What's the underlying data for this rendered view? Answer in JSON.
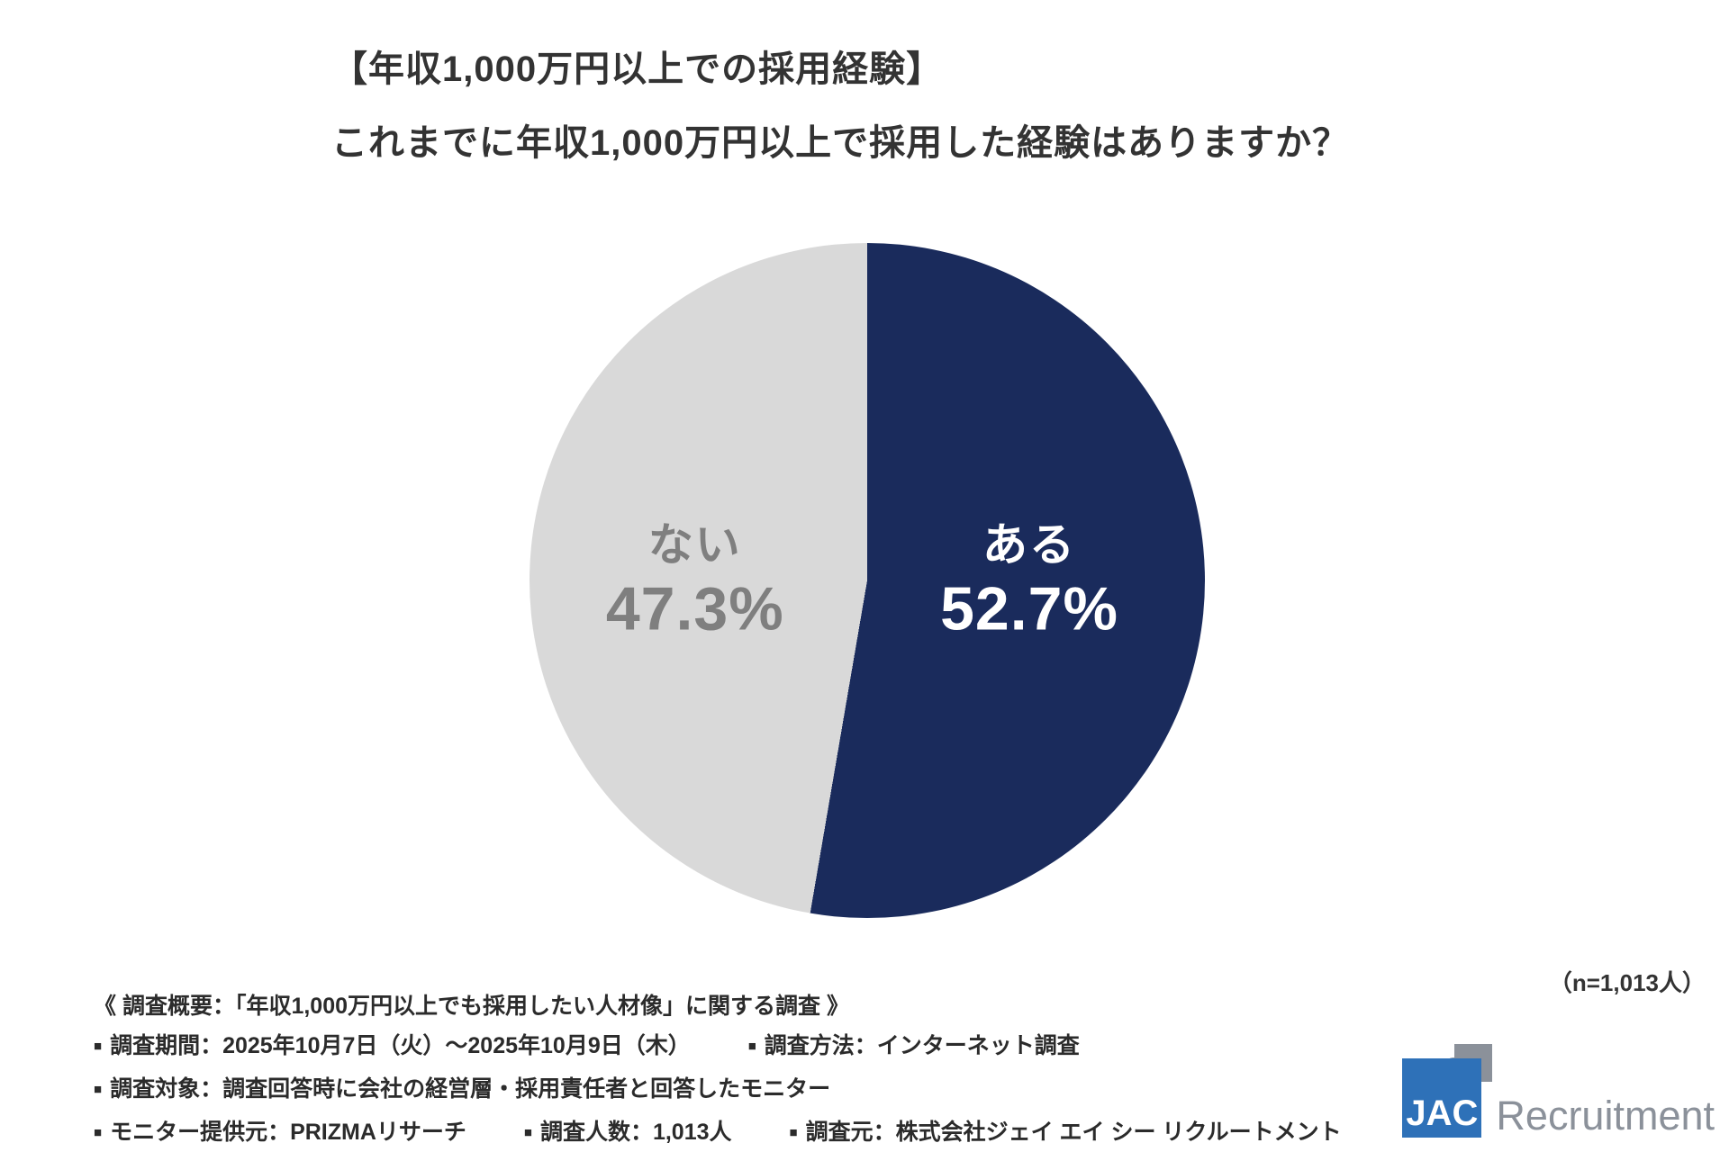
{
  "page": {
    "background": "#ffffff"
  },
  "title": {
    "line1": "【年収1,000万円以上での採用経験】",
    "line2": "これまでに年収1,000万円以上で採用した経験はありますか？"
  },
  "chart_data": {
    "type": "pie",
    "title": "【年収1,000万円以上での採用経験】これまでに年収1,000万円以上で採用した経験はありますか？",
    "categories": [
      "ある",
      "ない"
    ],
    "values": [
      52.7,
      47.3
    ],
    "unit": "%",
    "colors": [
      "#1a2b5c",
      "#d9d9d9"
    ],
    "label_text_colors": [
      "#ffffff",
      "#7f7f7f"
    ],
    "start_angle_deg": 0,
    "direction": "clockwise",
    "legend": "none",
    "n_label": "（n=1,013人）",
    "slices": [
      {
        "label": "ある",
        "value": 52.7,
        "value_label": "52.7%",
        "color": "#1a2b5c"
      },
      {
        "label": "ない",
        "value": 47.3,
        "value_label": "47.3%",
        "color": "#d9d9d9"
      }
    ]
  },
  "sample_note": "（n=1,013人）",
  "survey": {
    "heading": "《 調査概要：「年収1,000万円以上でも採用したい人材像」に関する調査 》",
    "rows": [
      {
        "items": [
          {
            "bullet": "■",
            "text": "調査期間：2025年10月7日（火）～2025年10月9日（木）"
          },
          {
            "bullet": "■",
            "text": "調査方法：インターネット調査"
          }
        ]
      },
      {
        "items": [
          {
            "bullet": "■",
            "text": "調査対象：調査回答時に会社の経営層・採用責任者と回答したモニター"
          }
        ]
      },
      {
        "items": [
          {
            "bullet": "■",
            "text": "モニター提供元：PRIZMAリサーチ"
          },
          {
            "bullet": "■",
            "text": "調査人数：1,013人"
          },
          {
            "bullet": "■",
            "text": "調査元：株式会社ジェイ エイ シー リクルートメント"
          }
        ]
      }
    ]
  },
  "logo": {
    "jac": "JAC",
    "recruitment": "Recruitment"
  }
}
